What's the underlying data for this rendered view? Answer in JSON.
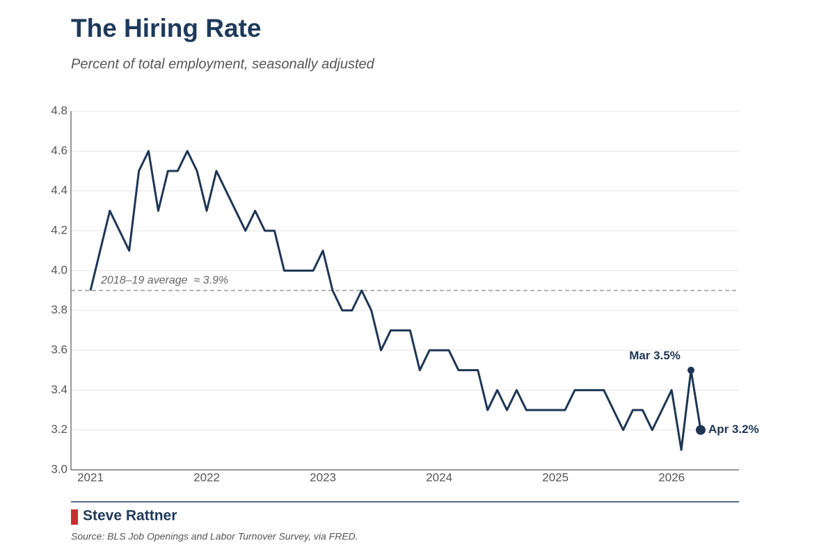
{
  "chart_data": {
    "type": "line",
    "title": "The Hiring Rate",
    "subtitle": "Percent of total employment, seasonally adjusted",
    "categories": [
      "2021",
      null,
      null,
      null,
      null,
      null,
      null,
      null,
      null,
      null,
      null,
      null,
      "2022",
      null,
      null,
      null,
      null,
      null,
      null,
      null,
      null,
      null,
      null,
      null,
      "2023",
      null,
      null,
      null,
      null,
      null,
      null,
      null,
      null,
      null,
      null,
      null,
      "2024",
      null,
      null,
      null,
      null,
      null,
      null,
      null,
      null,
      null,
      null,
      null,
      "2025",
      null,
      null,
      null,
      null,
      null,
      null,
      null,
      null,
      null,
      null,
      null,
      "2026",
      null,
      null,
      null
    ],
    "values": [
      3.9,
      4.1,
      4.3,
      4.2,
      4.1,
      4.5,
      4.6,
      4.3,
      4.5,
      4.5,
      4.6,
      4.5,
      4.3,
      4.5,
      4.4,
      4.3,
      4.2,
      4.3,
      4.2,
      4.2,
      4.0,
      4.0,
      4.0,
      4.0,
      4.1,
      3.9,
      3.8,
      3.8,
      3.9,
      3.8,
      3.6,
      3.7,
      3.7,
      3.7,
      3.5,
      3.6,
      3.6,
      3.6,
      3.5,
      3.5,
      3.5,
      3.3,
      3.4,
      3.3,
      3.4,
      3.3,
      3.3,
      3.3,
      3.3,
      3.3,
      3.4,
      3.4,
      3.4,
      3.4,
      3.3,
      3.2,
      3.3,
      3.3,
      3.2,
      3.3,
      3.4,
      3.1,
      3.5,
      3.2
    ],
    "value_labels": [
      null,
      null,
      null,
      null,
      null,
      null,
      null,
      null,
      null,
      null,
      null,
      null,
      null,
      null,
      null,
      null,
      null,
      null,
      null,
      null,
      null,
      null,
      null,
      null,
      null,
      null,
      null,
      null,
      null,
      null,
      null,
      null,
      null,
      null,
      null,
      null,
      null,
      null,
      null,
      null,
      null,
      null,
      null,
      null,
      null,
      null,
      null,
      null,
      null,
      null,
      null,
      null,
      null,
      null,
      null,
      null,
      null,
      null,
      null,
      null,
      null,
      null,
      "Mar 3.5%",
      "Apr 3.2%"
    ],
    "color": "#1e3654",
    "ylim": [
      3.0,
      4.8
    ],
    "yticks": [
      {
        "value": 3,
        "label": "3.0"
      },
      3.2,
      3.4,
      3.6,
      3.8,
      {
        "value": 4,
        "label": "4.0"
      },
      4.2,
      4.4,
      4.6,
      4.8
    ],
    "grid": true,
    "reference_line": {
      "value": 3.9,
      "label": "2018–19 average  ≈ 3.9%",
      "color": "#999999"
    },
    "author": "Steve Rattner",
    "source": "Source: BLS Job Openings and Labor Turnover Survey, via FRED."
  }
}
